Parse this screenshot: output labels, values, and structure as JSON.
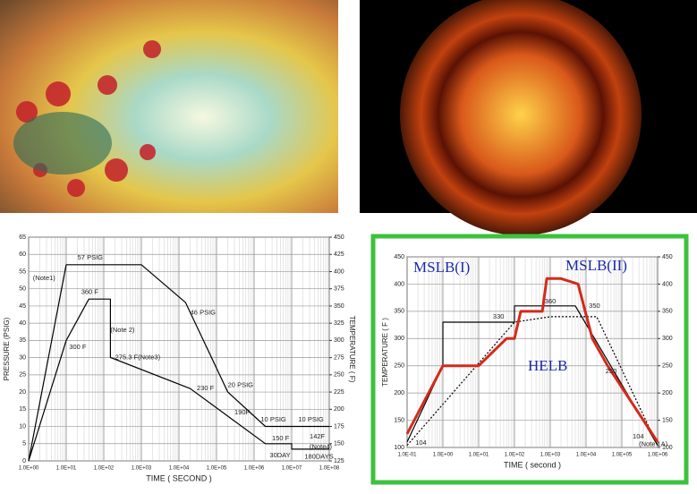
{
  "chart_data": [
    {
      "type": "line",
      "log_x": true,
      "grid": true,
      "xlabel": "TIME ( SECOND )",
      "ylabel": "PRESSURE (PSIG)",
      "y2label": "TEMPERATURE ( F)",
      "xlim": [
        1,
        100000000
      ],
      "xticks": [
        {
          "value": 1,
          "label": "1.0E+00"
        },
        {
          "value": 10,
          "label": "1.0E+01"
        },
        {
          "value": 100,
          "label": "1.0E+02"
        },
        {
          "value": 1000,
          "label": "1.0E+03"
        },
        {
          "value": 10000,
          "label": "1.0E+04"
        },
        {
          "value": 100000,
          "label": "1.0E+05"
        },
        {
          "value": 1000000,
          "label": "1.0E+06"
        },
        {
          "value": 10000000,
          "label": "1.0E+07"
        },
        {
          "value": 100000000,
          "label": "1.0E+08"
        }
      ],
      "ylim": [
        0,
        65
      ],
      "yticks": [
        0,
        5,
        10,
        15,
        20,
        25,
        30,
        35,
        40,
        45,
        50,
        55,
        60,
        65
      ],
      "y2lim": [
        125,
        450
      ],
      "y2ticks": [
        125,
        150,
        175,
        200,
        225,
        250,
        275,
        300,
        325,
        350,
        375,
        400,
        425,
        450
      ],
      "series": [
        {
          "name": "PRESSURE",
          "color": "#000000",
          "x": [
            1,
            10,
            1000,
            15000,
            200000,
            2000000,
            100000000
          ],
          "values": [
            0,
            57,
            57,
            46,
            20,
            10,
            10
          ]
        },
        {
          "name": "TEMPERATURE",
          "color": "#000000",
          "axis": "y2",
          "x": [
            1,
            10,
            40,
            150,
            150,
            20000,
            200000,
            2000000,
            10000000,
            10000000,
            100000000
          ],
          "values": [
            125,
            300,
            360,
            360,
            275.3,
            230,
            190,
            150,
            150,
            142,
            142
          ]
        }
      ],
      "annotations": [
        {
          "text": "57 PSIG",
          "x": 20,
          "y": 59
        },
        {
          "text": "(Note1)",
          "x": 1.3,
          "y": 53
        },
        {
          "text": "360 F",
          "x": 25,
          "y": 49
        },
        {
          "text": "300 F",
          "x": 12,
          "y": 33
        },
        {
          "text": "(Note 2)",
          "x": 150,
          "y": 38
        },
        {
          "text": "275.3 F(Note3)",
          "x": 200,
          "y": 30
        },
        {
          "text": "46 PSIG",
          "x": 20000,
          "y": 43
        },
        {
          "text": "20 PSIG",
          "x": 200000,
          "y": 22
        },
        {
          "text": "230 F",
          "x": 30000,
          "y": 21
        },
        {
          "text": "190F",
          "x": 300000,
          "y": 14
        },
        {
          "text": "10 PSIG",
          "x": 1500000,
          "y": 12
        },
        {
          "text": "10 PSIG",
          "x": 15000000,
          "y": 12
        },
        {
          "text": "150 F",
          "x": 3000000,
          "y": 6.5
        },
        {
          "text": "142F",
          "x": 30000000,
          "y": 7
        },
        {
          "text": "30DAY",
          "x": 2600000,
          "y": 1.5
        },
        {
          "text": "(Note4)",
          "x": 30000000,
          "y": 4
        },
        {
          "text": "180DAYS",
          "x": 22000000,
          "y": 1.2
        }
      ]
    },
    {
      "type": "line",
      "log_x": true,
      "grid": true,
      "xlabel": "TIME ( second )",
      "ylabel": "TEMPERATURE ( F )",
      "xlim": [
        0.1,
        1000000
      ],
      "xticks": [
        {
          "value": 0.1,
          "label": "1.0E-01"
        },
        {
          "value": 1,
          "label": "1.0E+00"
        },
        {
          "value": 10,
          "label": "1.0E+01"
        },
        {
          "value": 100,
          "label": "1.0E+02"
        },
        {
          "value": 1000,
          "label": "1.0E+03"
        },
        {
          "value": 10000,
          "label": "1.0E+04"
        },
        {
          "value": 100000,
          "label": "1.0E+05"
        },
        {
          "value": 1000000,
          "label": "1.0E+06"
        }
      ],
      "ylim": [
        100,
        450
      ],
      "yticks": [
        100,
        150,
        200,
        250,
        300,
        350,
        400,
        450
      ],
      "y2lim": [
        100,
        450
      ],
      "y2ticks": [
        100,
        150,
        200,
        250,
        300,
        350,
        400,
        450
      ],
      "series": [
        {
          "name": "MSLB(I)",
          "color": "#000000",
          "x": [
            0.1,
            1,
            1,
            100,
            100,
            5000,
            1000000
          ],
          "values": [
            110,
            250,
            330,
            330,
            360,
            360,
            104
          ]
        },
        {
          "name": "HELB",
          "color": "#000000",
          "dashed": true,
          "x": [
            0.1,
            100,
            1000,
            20000,
            1000000
          ],
          "values": [
            104,
            330,
            340,
            340,
            104
          ]
        },
        {
          "name": "MSLB(II)",
          "color": "#d42a1a",
          "x": [
            0.1,
            1,
            10,
            60,
            100,
            150,
            600,
            800,
            2000,
            6000,
            15000,
            40000,
            1000000
          ],
          "values": [
            125,
            250,
            250,
            300,
            300,
            350,
            350,
            410,
            410,
            400,
            300,
            250,
            110
          ]
        }
      ],
      "annotations": [
        {
          "text": "330",
          "x": 25,
          "y": 340
        },
        {
          "text": "360",
          "x": 700,
          "y": 368
        },
        {
          "text": "350",
          "x": 12000,
          "y": 360
        },
        {
          "text": "250",
          "x": 35000,
          "y": 240
        },
        {
          "text": "104",
          "x": 0.17,
          "y": 108
        },
        {
          "text": "104",
          "x": 200000,
          "y": 120
        },
        {
          "text": "(Note 1A)",
          "x": 300000,
          "y": 106
        }
      ]
    }
  ]
}
